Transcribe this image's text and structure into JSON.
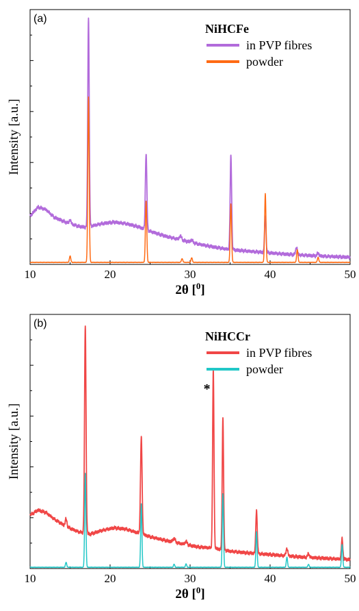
{
  "chart_data": [
    {
      "type": "line",
      "panel_label": "(a)",
      "legend_title": "NiHCFe",
      "xlabel": "2θ [",
      "xlabel_sup": "0",
      "xlabel_end": "]",
      "ylabel": "Intensity [a.u.]",
      "xlim": [
        10,
        50
      ],
      "ylim": [
        0,
        100
      ],
      "xticks": [
        10,
        20,
        30,
        40,
        50
      ],
      "legend_position": "top-right",
      "series": [
        {
          "name": "in PVP fibres",
          "color": "#b26bdb",
          "baseline": [
            [
              10,
              19
            ],
            [
              11,
              22.5
            ],
            [
              12,
              21.5
            ],
            [
              13,
              18.5
            ],
            [
              14.5,
              16.5
            ],
            [
              16,
              15
            ],
            [
              17,
              14.5
            ],
            [
              18,
              15.3
            ],
            [
              19,
              16
            ],
            [
              20.5,
              16.6
            ],
            [
              22,
              16
            ],
            [
              23.5,
              14.8
            ],
            [
              25,
              13
            ],
            [
              27,
              11
            ],
            [
              29,
              9.5
            ],
            [
              31,
              8
            ],
            [
              33,
              6.8
            ],
            [
              35,
              5.8
            ],
            [
              38,
              5
            ],
            [
              42,
              4
            ],
            [
              46,
              3.3
            ],
            [
              50,
              2.8
            ]
          ],
          "peaks": [
            [
              15,
              1.5,
              0.15
            ],
            [
              17.3,
              82,
              0.13
            ],
            [
              24.5,
              30,
              0.13
            ],
            [
              28.8,
              1.5,
              0.2
            ],
            [
              30.2,
              1,
              0.2
            ],
            [
              35.1,
              37,
              0.13
            ],
            [
              39.4,
              14.5,
              0.13
            ],
            [
              43.3,
              3,
              0.15
            ],
            [
              46,
              1.2,
              0.15
            ]
          ]
        },
        {
          "name": "powder",
          "color": "#ff6a13",
          "baseline": [
            [
              10,
              0.8
            ],
            [
              50,
              0.8
            ]
          ],
          "peaks": [
            [
              15,
              2.5,
              0.12
            ],
            [
              17.3,
              65,
              0.12
            ],
            [
              24.5,
              24,
              0.12
            ],
            [
              29,
              1.5,
              0.12
            ],
            [
              30.2,
              1.8,
              0.12
            ],
            [
              35.1,
              23,
              0.12
            ],
            [
              39.4,
              27,
              0.12
            ],
            [
              43.4,
              5,
              0.12
            ],
            [
              46,
              2,
              0.12
            ]
          ]
        }
      ]
    },
    {
      "type": "line",
      "panel_label": "(b)",
      "legend_title": "NiHCCr",
      "xlabel": "2θ [",
      "xlabel_sup": "0",
      "xlabel_end": "]",
      "ylabel": "Intensity [a.u.]",
      "xlim": [
        10,
        50
      ],
      "ylim": [
        0,
        100
      ],
      "xticks": [
        10,
        20,
        30,
        40,
        50
      ],
      "legend_position": "top-right",
      "annotation": {
        "text": "*",
        "x": 32.1,
        "y": 69
      },
      "series": [
        {
          "name": "in PVP fibres",
          "color": "#f04646",
          "baseline": [
            [
              10,
              21
            ],
            [
              11,
              23
            ],
            [
              12,
              22
            ],
            [
              13,
              19.5
            ],
            [
              14.5,
              16.5
            ],
            [
              16,
              14.5
            ],
            [
              17.5,
              13.5
            ],
            [
              19,
              15
            ],
            [
              20.5,
              16
            ],
            [
              22,
              15.5
            ],
            [
              23.5,
              14
            ],
            [
              25,
              12.5
            ],
            [
              27,
              11
            ],
            [
              29,
              9.7
            ],
            [
              31,
              8.5
            ],
            [
              33,
              8
            ],
            [
              35,
              6.8
            ],
            [
              37,
              6.2
            ],
            [
              40,
              5.5
            ],
            [
              44,
              4.5
            ],
            [
              47,
              4
            ],
            [
              50,
              3.5
            ]
          ],
          "peaks": [
            [
              14.5,
              3,
              0.15
            ],
            [
              16.9,
              82,
              0.13
            ],
            [
              23.9,
              38,
              0.14
            ],
            [
              28,
              1.5,
              0.2
            ],
            [
              29.5,
              1.2,
              0.2
            ],
            [
              32.9,
              70,
              0.12
            ],
            [
              34.1,
              52,
              0.12
            ],
            [
              38.3,
              17,
              0.13
            ],
            [
              42.1,
              3,
              0.15
            ],
            [
              44.8,
              1.5,
              0.15
            ],
            [
              49,
              8,
              0.13
            ]
          ]
        },
        {
          "name": "powder",
          "color": "#21c7c7",
          "baseline": [
            [
              10,
              0.5
            ],
            [
              50,
              0.5
            ]
          ],
          "peaks": [
            [
              14.5,
              2,
              0.11
            ],
            [
              16.9,
              37,
              0.11
            ],
            [
              23.9,
              25,
              0.11
            ],
            [
              28,
              1.2,
              0.11
            ],
            [
              29.5,
              1.3,
              0.11
            ],
            [
              34.1,
              29,
              0.11
            ],
            [
              38.3,
              14,
              0.11
            ],
            [
              42.1,
              4,
              0.11
            ],
            [
              44.8,
              1.2,
              0.11
            ],
            [
              49,
              9,
              0.11
            ]
          ]
        }
      ]
    }
  ]
}
